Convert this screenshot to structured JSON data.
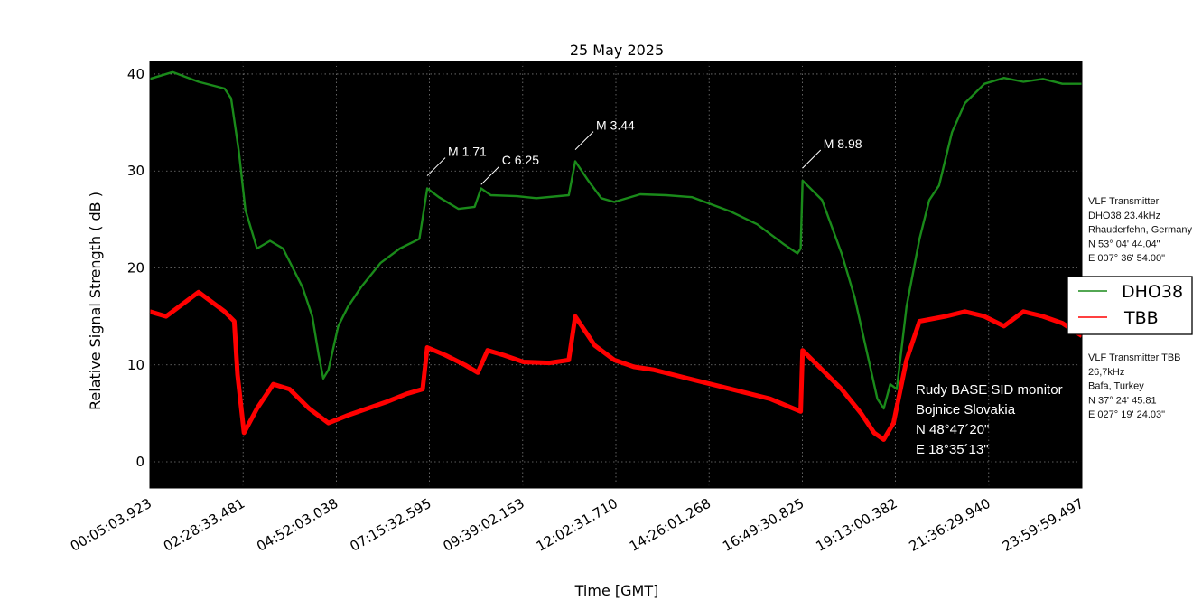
{
  "chart_data": {
    "type": "line",
    "title": "25 May 2025",
    "xlabel": "Time [GMT]",
    "ylabel": "Relative Signal Strength ( dB )",
    "ylim": [
      -2.7,
      41.3
    ],
    "xlim": [
      "00:05:03.923",
      "23:59:59.497"
    ],
    "xticks": [
      "00:05:03.923",
      "02:28:33.481",
      "04:52:03.038",
      "07:15:32.595",
      "09:39:02.153",
      "12:02:31.710",
      "14:26:01.268",
      "16:49:30.825",
      "19:13:00.382",
      "21:36:29.940",
      "23:59:59.497"
    ],
    "yticks": [
      0,
      10,
      20,
      30,
      40
    ],
    "grid": true,
    "background": "#000000",
    "legend_position": "right",
    "series": [
      {
        "name": "DHO38",
        "color": "#1a8a1a",
        "points": [
          [
            "00:05:03.923",
            39.5
          ],
          [
            "00:40:00",
            40.2
          ],
          [
            "01:20:00",
            39.2
          ],
          [
            "02:00:00",
            38.5
          ],
          [
            "02:10:00",
            37.5
          ],
          [
            "02:22:00",
            32
          ],
          [
            "02:32:00",
            26
          ],
          [
            "02:50:00",
            22
          ],
          [
            "03:10:00",
            22.8
          ],
          [
            "03:30:00",
            22
          ],
          [
            "04:00:00",
            18
          ],
          [
            "04:15:00",
            15
          ],
          [
            "04:25:00",
            11
          ],
          [
            "04:32:00",
            8.6
          ],
          [
            "04:40:00",
            9.5
          ],
          [
            "04:55:00",
            14
          ],
          [
            "05:10:00",
            16
          ],
          [
            "05:30:00",
            18
          ],
          [
            "06:00:00",
            20.5
          ],
          [
            "06:30:00",
            22
          ],
          [
            "07:00:00",
            23
          ],
          [
            "07:12:00",
            28.2
          ],
          [
            "07:30:00",
            27.3
          ],
          [
            "08:00:00",
            26.1
          ],
          [
            "08:25:00",
            26.3
          ],
          [
            "08:35:00",
            28.2
          ],
          [
            "08:50:00",
            27.5
          ],
          [
            "09:30:00",
            27.4
          ],
          [
            "10:00:00",
            27.2
          ],
          [
            "10:50:00",
            27.5
          ],
          [
            "11:00:00",
            31
          ],
          [
            "11:20:00",
            29
          ],
          [
            "11:40:00",
            27.2
          ],
          [
            "12:00:00",
            26.8
          ],
          [
            "12:40:00",
            27.6
          ],
          [
            "13:20:00",
            27.5
          ],
          [
            "14:00:00",
            27.3
          ],
          [
            "15:00:00",
            25.8
          ],
          [
            "15:40:00",
            24.5
          ],
          [
            "16:20:00",
            22.5
          ],
          [
            "16:42:00",
            21.5
          ],
          [
            "16:47:00",
            22
          ],
          [
            "16:50:00",
            29
          ],
          [
            "17:20:00",
            27
          ],
          [
            "17:50:00",
            21.5
          ],
          [
            "18:10:00",
            17
          ],
          [
            "18:30:00",
            11
          ],
          [
            "18:45:00",
            6.5
          ],
          [
            "18:55:00",
            5.5
          ],
          [
            "19:05:00",
            8
          ],
          [
            "19:15:00",
            7.5
          ],
          [
            "19:30:00",
            16
          ],
          [
            "19:50:00",
            23
          ],
          [
            "20:05:00",
            27
          ],
          [
            "20:20:00",
            28.5
          ],
          [
            "20:40:00",
            34
          ],
          [
            "21:00:00",
            37
          ],
          [
            "21:30:00",
            39
          ],
          [
            "22:00:00",
            39.6
          ],
          [
            "22:30:00",
            39.2
          ],
          [
            "23:00:00",
            39.5
          ],
          [
            "23:30:00",
            39
          ],
          [
            "23:59:59.497",
            39
          ]
        ]
      },
      {
        "name": "TBB",
        "color": "#ff0000",
        "points": [
          [
            "00:05:03.923",
            15.5
          ],
          [
            "00:30:00",
            15
          ],
          [
            "01:00:00",
            16.5
          ],
          [
            "01:20:00",
            17.5
          ],
          [
            "01:40:00",
            16.5
          ],
          [
            "02:00:00",
            15.5
          ],
          [
            "02:15:00",
            14.5
          ],
          [
            "02:20:00",
            9
          ],
          [
            "02:30:00",
            3
          ],
          [
            "02:50:00",
            5.5
          ],
          [
            "03:15:00",
            8
          ],
          [
            "03:40:00",
            7.5
          ],
          [
            "04:10:00",
            5.5
          ],
          [
            "04:40:00",
            4
          ],
          [
            "05:10:00",
            4.8
          ],
          [
            "05:40:00",
            5.5
          ],
          [
            "06:10:00",
            6.2
          ],
          [
            "06:40:00",
            7
          ],
          [
            "07:05:00",
            7.5
          ],
          [
            "07:12:00",
            11.8
          ],
          [
            "07:40:00",
            11
          ],
          [
            "08:10:00",
            10
          ],
          [
            "08:30:00",
            9.2
          ],
          [
            "08:45:00",
            11.5
          ],
          [
            "09:10:00",
            11
          ],
          [
            "09:40:00",
            10.3
          ],
          [
            "10:20:00",
            10.2
          ],
          [
            "10:50:00",
            10.5
          ],
          [
            "11:00:00",
            15
          ],
          [
            "11:30:00",
            12
          ],
          [
            "12:00:00",
            10.5
          ],
          [
            "12:30:00",
            9.8
          ],
          [
            "13:00:00",
            9.5
          ],
          [
            "14:00:00",
            8.5
          ],
          [
            "15:00:00",
            7.5
          ],
          [
            "16:00:00",
            6.5
          ],
          [
            "16:47:00",
            5.2
          ],
          [
            "16:50:00",
            11.5
          ],
          [
            "17:20:00",
            9.5
          ],
          [
            "17:50:00",
            7.5
          ],
          [
            "18:20:00",
            5
          ],
          [
            "18:40:00",
            3
          ],
          [
            "18:55:00",
            2.3
          ],
          [
            "19:10:00",
            4
          ],
          [
            "19:30:00",
            10.5
          ],
          [
            "19:50:00",
            14.5
          ],
          [
            "20:30:00",
            15
          ],
          [
            "21:00:00",
            15.5
          ],
          [
            "21:30:00",
            15
          ],
          [
            "22:00:00",
            14
          ],
          [
            "22:30:00",
            15.5
          ],
          [
            "23:00:00",
            15
          ],
          [
            "23:30:00",
            14.3
          ],
          [
            "23:59:59.497",
            13
          ]
        ]
      }
    ],
    "annotations": [
      {
        "text": "M 1.71",
        "time": "07:12:00",
        "value": 29.5
      },
      {
        "text": "C 6.25",
        "time": "08:35:00",
        "value": 28.6
      },
      {
        "text": "M 3.44",
        "time": "11:00:00",
        "value": 32.2
      },
      {
        "text": "M 8.98",
        "time": "16:50:00",
        "value": 30.3
      }
    ]
  },
  "monitor_info": [
    "Rudy BASE SID monitor",
    "Bojnice Slovakia",
    "N 48°47´20\"",
    "E 18°35´13\""
  ],
  "transmitter_dho": [
    "VLF Transmitter",
    "DHO38 23.4kHz",
    "Rhauderfehn, Germany",
    "N 53° 04' 44.04\"",
    "E 007° 36' 54.00\""
  ],
  "transmitter_tbb": [
    "VLF Transmitter TBB",
    "26,7kHz",
    "Bafa, Turkey",
    "N 37° 24' 45.81",
    "E 027° 19' 24.03\""
  ]
}
